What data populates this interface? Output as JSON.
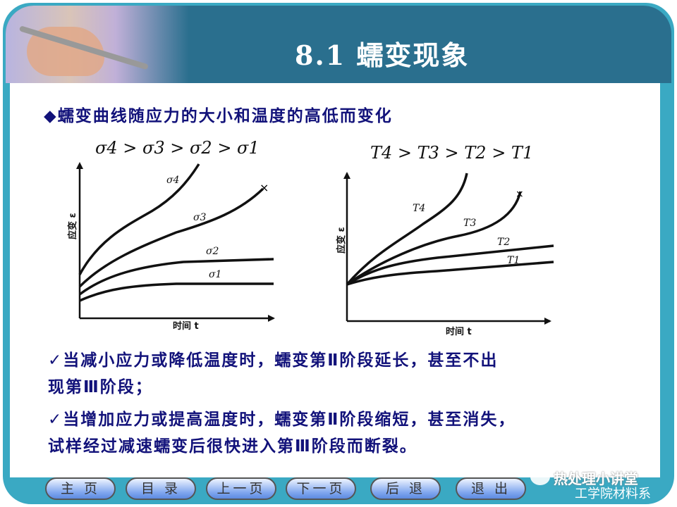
{
  "header": {
    "title": "8.1  蠕变现象"
  },
  "content": {
    "heading": "◆蠕变曲线随应力的大小和温度的高低而变化",
    "bullet1_line1": "✓当减小应力或降低温度时，蠕变第Ⅱ阶段延长，甚至不出",
    "bullet1_line2": "现第Ⅲ阶段；",
    "bullet2_line1": "✓当增加应力或提高温度时，蠕变第Ⅱ阶段缩短，甚至消失，",
    "bullet2_line2": "试样经过减速蠕变后很快进入第Ⅲ阶段而断裂。"
  },
  "figure_left": {
    "caption": "σ4 > σ3 > σ2 > σ1",
    "ylabel": "应变 ε",
    "xlabel": "时间 t",
    "curves": [
      "σ4",
      "σ3",
      "σ2",
      "σ1"
    ],
    "fracture_mark": "×"
  },
  "figure_right": {
    "caption": "T4 > T3 > T2 > T1",
    "ylabel": "应变 ε",
    "xlabel": "时间 t",
    "curves": [
      "T4",
      "T3",
      "T2",
      "T1"
    ],
    "fracture_mark": "×"
  },
  "nav": {
    "buttons": [
      "主 页",
      "目 录",
      "上一页",
      "下一页",
      "后 退",
      "退 出"
    ]
  },
  "watermark": {
    "line1": "热处理小讲堂",
    "line2": "工学院材料系"
  },
  "colors": {
    "header": "#2a6f8e",
    "frame": "#3aa9c3",
    "text": "#12127a"
  }
}
